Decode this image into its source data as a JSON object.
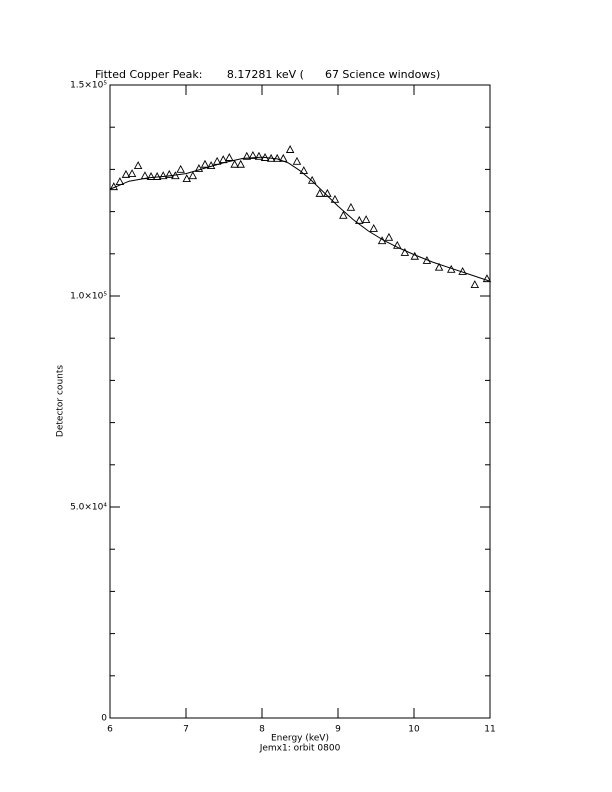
{
  "chart_data": {
    "type": "scatter",
    "title": "Fitted Copper Peak:       8.17281 keV (      67 Science windows)",
    "xlabel": "Energy (keV)",
    "subtitle": "Jemx1: orbit 0800",
    "ylabel": "Detector counts",
    "xlim": [
      6,
      11
    ],
    "ylim": [
      0,
      150000
    ],
    "xticks": [
      6,
      7,
      8,
      9,
      10,
      11
    ],
    "yticks": [
      0,
      {
        "value": 50000,
        "label": "5.0×10⁴"
      },
      {
        "value": 100000,
        "label": "1.0×10⁵"
      },
      {
        "value": 150000,
        "label": "1.5×10⁵"
      }
    ],
    "yminorticks": [
      10000,
      20000,
      30000,
      40000,
      60000,
      70000,
      80000,
      90000,
      110000,
      120000,
      130000,
      140000
    ],
    "color": "#000000",
    "series": [
      {
        "type": "scatter",
        "marker": "triangle",
        "x": [
          6.05,
          6.13,
          6.21,
          6.29,
          6.37,
          6.46,
          6.54,
          6.62,
          6.7,
          6.78,
          6.86,
          6.93,
          7.01,
          7.09,
          7.17,
          7.25,
          7.33,
          7.41,
          7.49,
          7.57,
          7.64,
          7.72,
          7.8,
          7.88,
          7.96,
          8.04,
          8.12,
          8.2,
          8.28,
          8.37,
          8.46,
          8.55,
          8.66,
          8.76,
          8.86,
          8.96,
          9.07,
          9.17,
          9.28,
          9.37,
          9.47,
          9.58,
          9.67,
          9.78,
          9.88,
          10.01,
          10.17,
          10.33,
          10.49,
          10.64,
          10.8,
          10.96
        ],
        "values": [
          125800,
          127000,
          128700,
          128900,
          130800,
          128400,
          128200,
          128200,
          128400,
          128700,
          128400,
          129900,
          127700,
          128400,
          130100,
          131100,
          130800,
          131800,
          132200,
          132700,
          131100,
          131100,
          133000,
          133200,
          133000,
          132700,
          132500,
          132500,
          132500,
          134600,
          131800,
          129600,
          127300,
          124200,
          124200,
          122800,
          119000,
          120900,
          117800,
          118000,
          115900,
          113000,
          113800,
          111900,
          110200,
          109300,
          108300,
          106700,
          106200,
          105700,
          102600,
          104000
        ]
      },
      {
        "type": "line",
        "x": [
          6.0,
          6.25,
          6.5,
          6.75,
          7.0,
          7.25,
          7.5,
          7.75,
          8.0,
          8.2,
          8.35,
          8.5,
          8.65,
          8.8,
          9.0,
          9.2,
          9.4,
          9.6,
          9.8,
          10.0,
          10.25,
          10.5,
          10.75,
          11.0
        ],
        "values": [
          125300,
          127200,
          128000,
          128400,
          129000,
          130300,
          131600,
          132600,
          132900,
          132500,
          131500,
          129700,
          127400,
          124800,
          121300,
          118100,
          115400,
          113200,
          111400,
          109800,
          108000,
          106500,
          105000,
          103500
        ]
      }
    ]
  }
}
